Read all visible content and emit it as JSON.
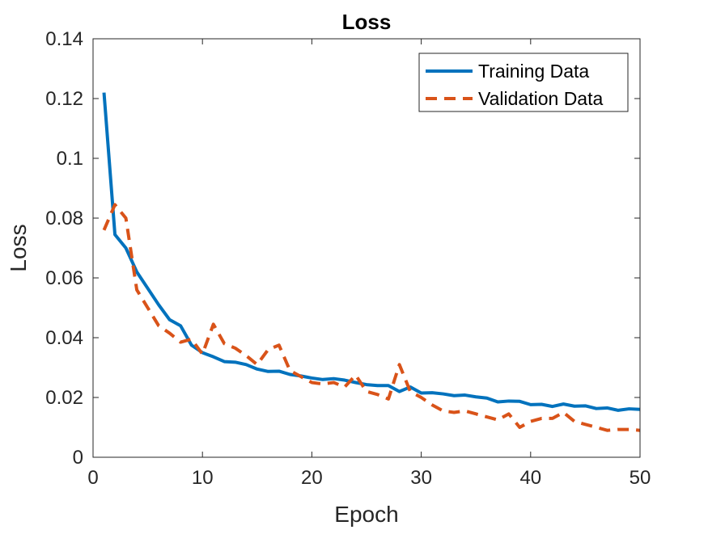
{
  "chart_data": {
    "type": "line",
    "title": "Loss",
    "xlabel": "Epoch",
    "ylabel": "Loss",
    "xlim": [
      0,
      50
    ],
    "ylim": [
      0,
      0.14
    ],
    "xticks": [
      0,
      10,
      20,
      30,
      40,
      50
    ],
    "xtick_labels": [
      "0",
      "10",
      "20",
      "30",
      "40",
      "50"
    ],
    "yticks": [
      0,
      0.02,
      0.04,
      0.06,
      0.08,
      0.1,
      0.12,
      0.14
    ],
    "ytick_labels": [
      "0",
      "0.02",
      "0.04",
      "0.06",
      "0.08",
      "0.1",
      "0.12",
      "0.14"
    ],
    "grid": false,
    "legend_position": "top-right",
    "x": [
      1,
      2,
      3,
      4,
      5,
      6,
      7,
      8,
      9,
      10,
      11,
      12,
      13,
      14,
      15,
      16,
      17,
      18,
      19,
      20,
      21,
      22,
      23,
      24,
      25,
      26,
      27,
      28,
      29,
      30,
      31,
      32,
      33,
      34,
      35,
      36,
      37,
      38,
      39,
      40,
      41,
      42,
      43,
      44,
      45,
      46,
      47,
      48,
      49,
      50
    ],
    "series": [
      {
        "name": "Training Data",
        "color": "#0072BD",
        "style": "solid",
        "values": [
          0.122,
          0.0745,
          0.07,
          0.062,
          0.0565,
          0.051,
          0.046,
          0.044,
          0.0375,
          0.035,
          0.0336,
          0.032,
          0.0318,
          0.031,
          0.0295,
          0.0287,
          0.0288,
          0.0277,
          0.0272,
          0.0265,
          0.026,
          0.0263,
          0.0258,
          0.025,
          0.0243,
          0.024,
          0.024,
          0.022,
          0.0235,
          0.0215,
          0.0216,
          0.0212,
          0.0206,
          0.0208,
          0.0202,
          0.0198,
          0.0185,
          0.0188,
          0.0187,
          0.0176,
          0.0177,
          0.017,
          0.0178,
          0.0171,
          0.0172,
          0.0163,
          0.0165,
          0.0157,
          0.0162,
          0.016
        ]
      },
      {
        "name": "Validation Data",
        "color": "#D95319",
        "style": "dashed",
        "values": [
          0.076,
          0.0845,
          0.08,
          0.056,
          0.05,
          0.044,
          0.0415,
          0.0385,
          0.0395,
          0.0345,
          0.0445,
          0.038,
          0.0365,
          0.034,
          0.031,
          0.036,
          0.0375,
          0.029,
          0.027,
          0.025,
          0.0245,
          0.025,
          0.0235,
          0.0275,
          0.022,
          0.021,
          0.0195,
          0.031,
          0.022,
          0.02,
          0.0175,
          0.0155,
          0.015,
          0.0155,
          0.0145,
          0.0135,
          0.0125,
          0.0145,
          0.01,
          0.012,
          0.013,
          0.013,
          0.015,
          0.012,
          0.011,
          0.01,
          0.009,
          0.0093,
          0.0093,
          0.009
        ]
      }
    ]
  }
}
